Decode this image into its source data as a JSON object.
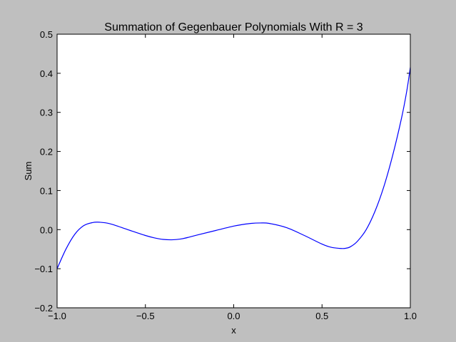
{
  "chart_data": {
    "type": "line",
    "title": "Summation of Gegenbauer Polynomials With R = 3",
    "xlabel": "x",
    "ylabel": "Sum",
    "xlim": [
      -1.0,
      1.0
    ],
    "ylim": [
      -0.2,
      0.5
    ],
    "xticks": [
      -1.0,
      -0.5,
      0.0,
      0.5,
      1.0
    ],
    "xtick_labels": [
      "−1.0",
      "−0.5",
      "0.0",
      "0.5",
      "1.0"
    ],
    "yticks": [
      -0.2,
      -0.1,
      0.0,
      0.1,
      0.2,
      0.3,
      0.4,
      0.5
    ],
    "ytick_labels": [
      "−0.2",
      "−0.1",
      "0.0",
      "0.1",
      "0.2",
      "0.3",
      "0.4",
      "0.5"
    ],
    "grid": false,
    "series": [
      {
        "color": "#0000ff",
        "x": [
          -1.0,
          -0.95,
          -0.9,
          -0.85,
          -0.8,
          -0.76,
          -0.7,
          -0.6,
          -0.5,
          -0.45,
          -0.4,
          -0.35,
          -0.3,
          -0.25,
          -0.2,
          -0.1,
          0.0,
          0.05,
          0.1,
          0.15,
          0.2,
          0.3,
          0.4,
          0.5,
          0.55,
          0.6,
          0.63,
          0.66,
          0.7,
          0.75,
          0.8,
          0.85,
          0.9,
          0.95,
          0.98,
          1.0
        ],
        "y": [
          -0.1,
          -0.05,
          -0.012,
          0.01,
          0.018,
          0.019,
          0.015,
          0.0,
          -0.015,
          -0.021,
          -0.025,
          -0.026,
          -0.024,
          -0.019,
          -0.013,
          -0.002,
          0.009,
          0.013,
          0.016,
          0.017,
          0.016,
          0.005,
          -0.015,
          -0.037,
          -0.045,
          -0.048,
          -0.048,
          -0.044,
          -0.03,
          0.0,
          0.047,
          0.11,
          0.19,
          0.285,
          0.355,
          0.415
        ]
      }
    ]
  }
}
